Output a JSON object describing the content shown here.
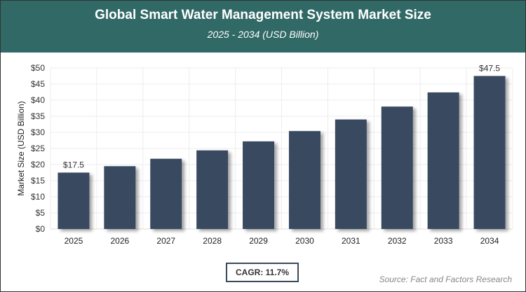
{
  "chart_data": {
    "type": "bar",
    "title": "Global Smart Water Management System Market Size",
    "subtitle": "2025 - 2034 (USD Billion)",
    "ylabel": "Market Size (USD Billion)",
    "xlabel": "",
    "categories": [
      "2025",
      "2026",
      "2027",
      "2028",
      "2029",
      "2030",
      "2031",
      "2032",
      "2033",
      "2034"
    ],
    "values": [
      17.5,
      19.5,
      21.8,
      24.4,
      27.2,
      30.4,
      34.0,
      38.0,
      42.4,
      47.5
    ],
    "data_labels": {
      "0": "$17.5",
      "9": "$47.5"
    },
    "ylim": [
      0,
      50
    ],
    "yticks": [
      "$0",
      "$5",
      "$10",
      "$15",
      "$20",
      "$25",
      "$30",
      "$35",
      "$40",
      "$45",
      "$50"
    ],
    "grid": true,
    "bar_color": "#374a61",
    "header_color": "#316966"
  },
  "cagr": "CAGR: 11.7%",
  "source": "Source: Fact and Factors Research"
}
